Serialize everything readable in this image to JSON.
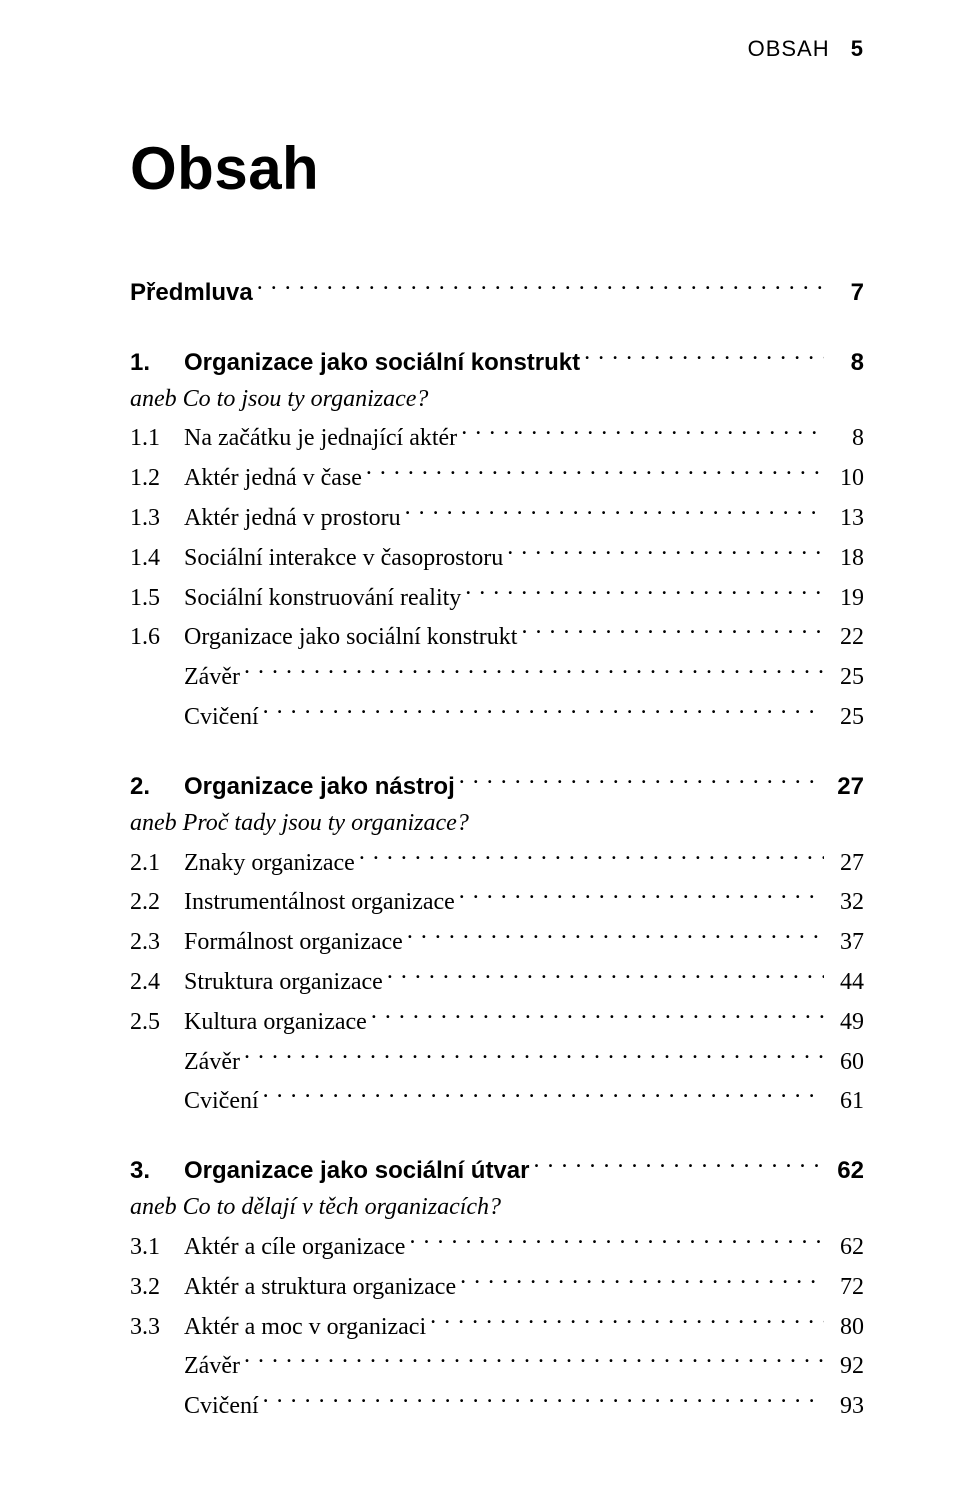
{
  "running_head": {
    "label": "OBSAH",
    "page": "5"
  },
  "title": "Obsah",
  "blocks": [
    {
      "rows": [
        {
          "label": "Předmluva",
          "page": "7",
          "bold": true,
          "indent": 0
        }
      ]
    },
    {
      "rows": [
        {
          "num": "1.",
          "label": "Organizace jako sociální konstrukt",
          "page": "8",
          "bold": true,
          "indent": 0
        },
        {
          "label": "aneb Co to jsou ty organizace?",
          "italic": true,
          "nopage": true,
          "indent": 1
        },
        {
          "num": "1.1",
          "label": "Na začátku je jednající aktér",
          "page": "8",
          "indent": 1
        },
        {
          "num": "1.2",
          "label": "Aktér jedná v čase",
          "page": "10",
          "indent": 1
        },
        {
          "num": "1.3",
          "label": "Aktér jedná v prostoru",
          "page": "13",
          "indent": 1
        },
        {
          "num": "1.4",
          "label": "Sociální interakce v časoprostoru",
          "page": "18",
          "indent": 1
        },
        {
          "num": "1.5",
          "label": "Sociální konstruování reality",
          "page": "19",
          "indent": 1
        },
        {
          "num": "1.6",
          "label": "Organizace jako sociální konstrukt",
          "page": "22",
          "indent": 1
        },
        {
          "label": "Závěr",
          "page": "25",
          "indent": 2
        },
        {
          "label": "Cvičení",
          "page": "25",
          "indent": 2
        }
      ]
    },
    {
      "rows": [
        {
          "num": "2.",
          "label": "Organizace jako nástroj",
          "page": "27",
          "bold": true,
          "indent": 0
        },
        {
          "label": "aneb Proč tady jsou ty organizace?",
          "italic": true,
          "nopage": true,
          "indent": 1
        },
        {
          "num": "2.1",
          "label": "Znaky organizace",
          "page": "27",
          "indent": 1
        },
        {
          "num": "2.2",
          "label": "Instrumentálnost organizace",
          "page": "32",
          "indent": 1
        },
        {
          "num": "2.3",
          "label": "Formálnost organizace",
          "page": "37",
          "indent": 1
        },
        {
          "num": "2.4",
          "label": "Struktura organizace",
          "page": "44",
          "indent": 1
        },
        {
          "num": "2.5",
          "label": "Kultura organizace",
          "page": "49",
          "indent": 1
        },
        {
          "label": "Závěr",
          "page": "60",
          "indent": 2
        },
        {
          "label": "Cvičení",
          "page": "61",
          "indent": 2
        }
      ]
    },
    {
      "rows": [
        {
          "num": "3.",
          "label": "Organizace jako sociální útvar",
          "page": "62",
          "bold": true,
          "indent": 0
        },
        {
          "label": "aneb Co to dělají v těch organizacích?",
          "italic": true,
          "nopage": true,
          "indent": 1
        },
        {
          "num": "3.1",
          "label": "Aktér a cíle organizace",
          "page": "62",
          "indent": 1
        },
        {
          "num": "3.2",
          "label": "Aktér a struktura organizace",
          "page": "72",
          "indent": 1
        },
        {
          "num": "3.3",
          "label": "Aktér a moc v organizaci",
          "page": "80",
          "indent": 1
        },
        {
          "label": "Závěr",
          "page": "92",
          "indent": 2
        },
        {
          "label": "Cvičení",
          "page": "93",
          "indent": 2
        }
      ]
    }
  ]
}
